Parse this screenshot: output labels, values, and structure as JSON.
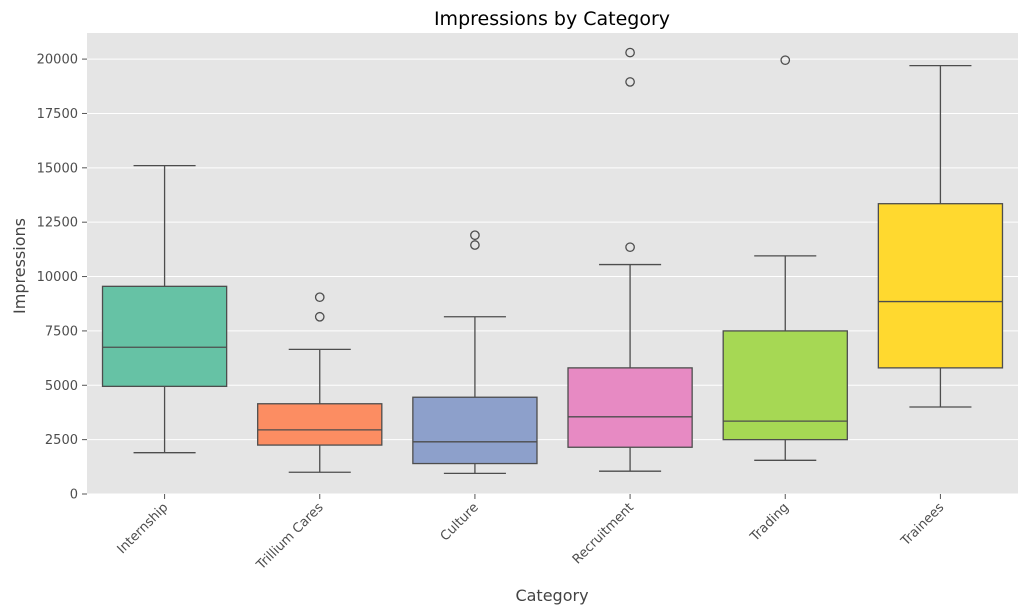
{
  "chart_data": {
    "type": "box",
    "title": "Impressions by Category",
    "xlabel": "Category",
    "ylabel": "Impressions",
    "ylim": [
      0,
      21200
    ],
    "yticks": [
      0,
      2500,
      5000,
      7500,
      10000,
      12500,
      15000,
      17500,
      20000
    ],
    "ytick_labels": [
      "0",
      "2500",
      "5000",
      "7500",
      "10000",
      "12500",
      "15000",
      "17500",
      "20000"
    ],
    "grid": true,
    "categories": [
      "Internship",
      "Trillium Cares",
      "Culture",
      "Recruitment",
      "Trading",
      "Trainees"
    ],
    "colors": [
      "#66c2a5",
      "#fc8d62",
      "#8da0cb",
      "#e78ac3",
      "#a6d854",
      "#ffd92f"
    ],
    "boxes": [
      {
        "category": "Internship",
        "whisker_low": 1900,
        "q1": 4950,
        "median": 6750,
        "q3": 9550,
        "whisker_high": 15100,
        "outliers": []
      },
      {
        "category": "Trillium Cares",
        "whisker_low": 1000,
        "q1": 2250,
        "median": 2950,
        "q3": 4150,
        "whisker_high": 6650,
        "outliers": [
          8150,
          9050
        ]
      },
      {
        "category": "Culture",
        "whisker_low": 950,
        "q1": 1400,
        "median": 2400,
        "q3": 4450,
        "whisker_high": 8150,
        "outliers": [
          11450,
          11900
        ]
      },
      {
        "category": "Recruitment",
        "whisker_low": 1050,
        "q1": 2150,
        "median": 3550,
        "q3": 5800,
        "whisker_high": 10550,
        "outliers": [
          11350,
          18950,
          20300
        ]
      },
      {
        "category": "Trading",
        "whisker_low": 1550,
        "q1": 2500,
        "median": 3350,
        "q3": 7500,
        "whisker_high": 10950,
        "outliers": [
          19950
        ]
      },
      {
        "category": "Trainees",
        "whisker_low": 4000,
        "q1": 5800,
        "median": 8850,
        "q3": 13350,
        "whisker_high": 19700,
        "outliers": []
      }
    ]
  }
}
